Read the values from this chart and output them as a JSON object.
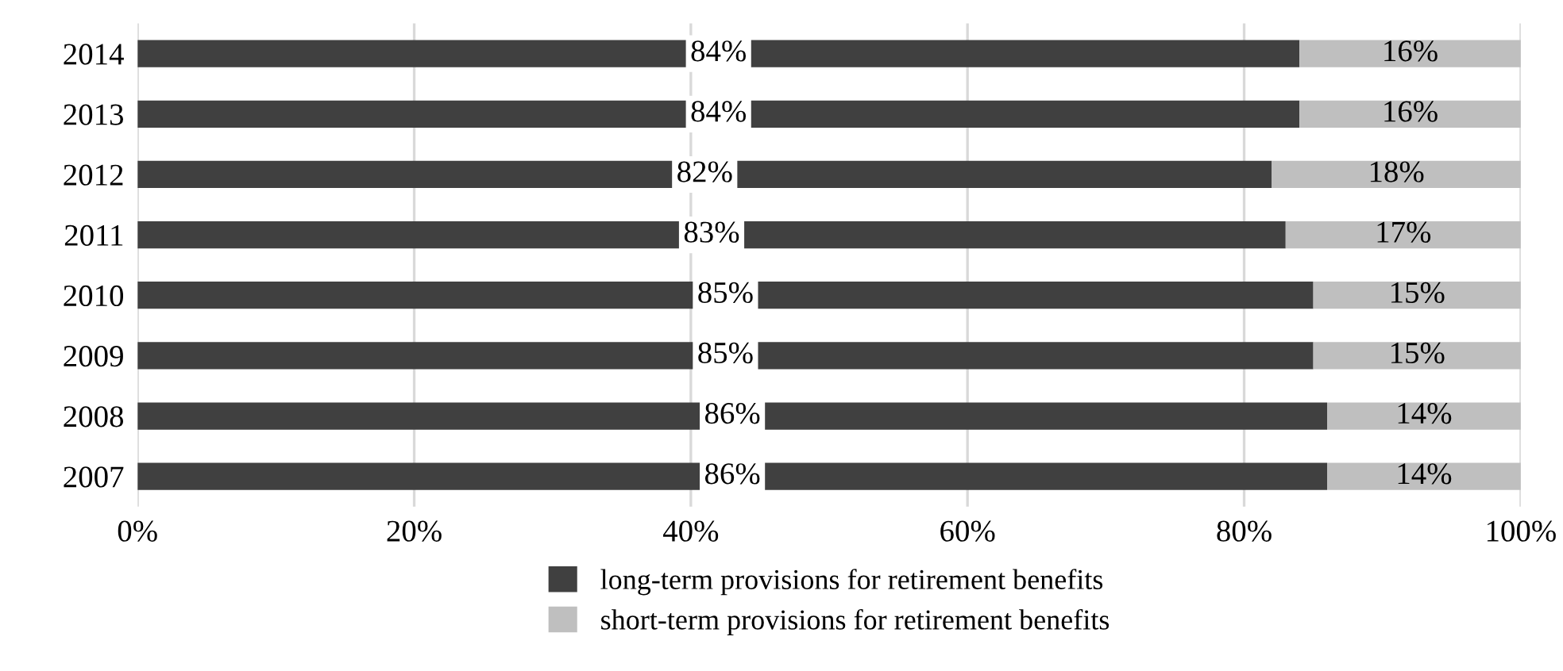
{
  "chart_data": {
    "type": "bar",
    "orientation": "horizontal",
    "stacked": true,
    "categories": [
      "2014",
      "2013",
      "2012",
      "2011",
      "2010",
      "2009",
      "2008",
      "2007"
    ],
    "series": [
      {
        "name": "long-term provisions for retirement benefits",
        "color": "#404040",
        "values": [
          84,
          84,
          82,
          83,
          85,
          85,
          86,
          86
        ],
        "value_labels": [
          "84%",
          "84%",
          "82%",
          "83%",
          "85%",
          "85%",
          "86%",
          "86%"
        ]
      },
      {
        "name": "short-term provisions for retirement benefits",
        "color": "#bfbfbf",
        "values": [
          16,
          16,
          18,
          17,
          15,
          15,
          14,
          14
        ],
        "value_labels": [
          "16%",
          "16%",
          "18%",
          "17%",
          "15%",
          "15%",
          "14%",
          "14%"
        ]
      }
    ],
    "xlim": [
      0,
      100
    ],
    "xticks": [
      {
        "value": 0,
        "label": "0%"
      },
      {
        "value": 20,
        "label": "20%"
      },
      {
        "value": 40,
        "label": "40%"
      },
      {
        "value": 60,
        "label": "60%"
      },
      {
        "value": 80,
        "label": "80%"
      },
      {
        "value": 100,
        "label": "100%"
      }
    ],
    "grid": "x",
    "legend": "bottom"
  }
}
